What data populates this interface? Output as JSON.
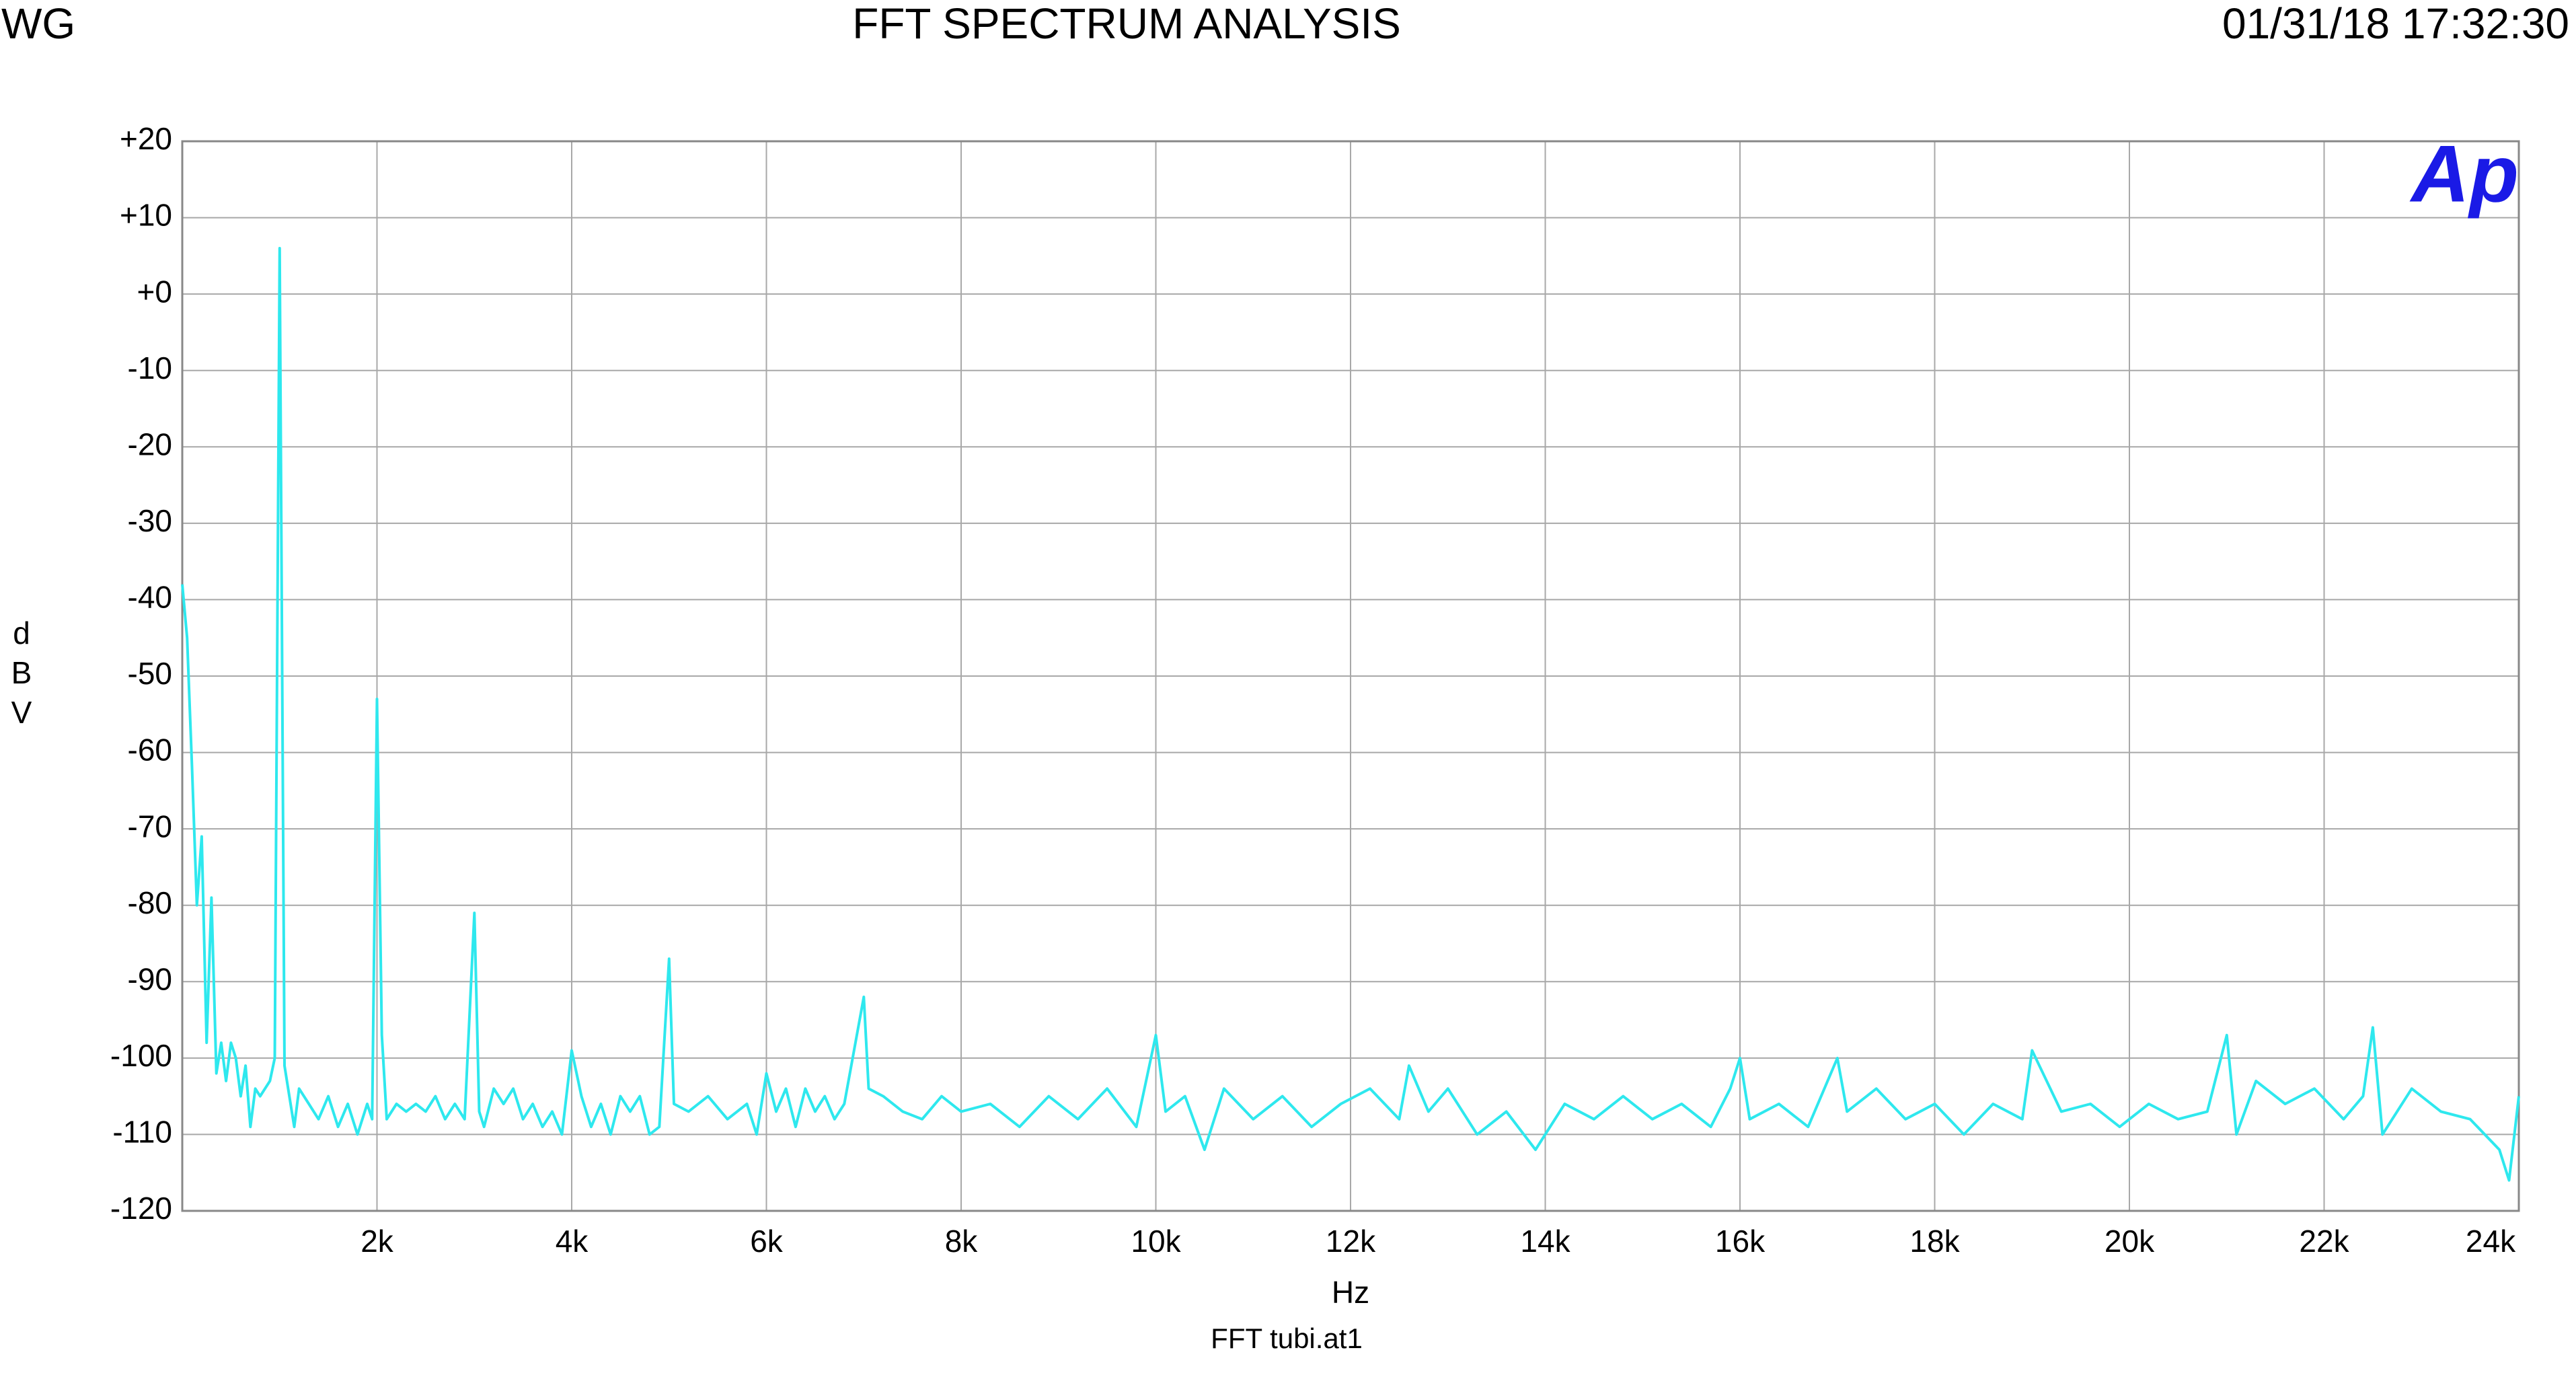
{
  "header": {
    "left": "WG",
    "title": "FFT SPECTRUM ANALYSIS",
    "timestamp": "01/31/18 17:32:30",
    "logo": "Ap"
  },
  "footer": "FFT tubi.at1",
  "chart_data": {
    "type": "line",
    "x_label": "Hz",
    "y_label": "dBV",
    "xlim": [
      0,
      24000
    ],
    "xticks": [
      {
        "value": 2000,
        "label": "2k"
      },
      {
        "value": 4000,
        "label": "4k"
      },
      {
        "value": 6000,
        "label": "6k"
      },
      {
        "value": 8000,
        "label": "8k"
      },
      {
        "value": 10000,
        "label": "10k"
      },
      {
        "value": 12000,
        "label": "12k"
      },
      {
        "value": 14000,
        "label": "14k"
      },
      {
        "value": 16000,
        "label": "16k"
      },
      {
        "value": 18000,
        "label": "18k"
      },
      {
        "value": 20000,
        "label": "20k"
      },
      {
        "value": 22000,
        "label": "22k"
      },
      {
        "value": 24000,
        "label": "24k"
      }
    ],
    "ylim": [
      -120,
      20
    ],
    "yticks": [
      {
        "value": 20,
        "label": "+20"
      },
      {
        "value": 10,
        "label": "+10"
      },
      {
        "value": 0,
        "label": "+0"
      },
      -10,
      -20,
      -30,
      -40,
      -50,
      -60,
      -70,
      -80,
      -90,
      -100,
      -110,
      -120
    ],
    "grid": true,
    "series": [
      {
        "color": "#2ee8ee",
        "x": [
          0,
          50,
          100,
          150,
          200,
          250,
          300,
          350,
          400,
          450,
          500,
          550,
          600,
          650,
          700,
          750,
          800,
          850,
          900,
          950,
          1000,
          1050,
          1100,
          1150,
          1200,
          1300,
          1400,
          1500,
          1600,
          1700,
          1800,
          1900,
          1950,
          2000,
          2050,
          2100,
          2200,
          2300,
          2400,
          2500,
          2600,
          2700,
          2800,
          2900,
          3000,
          3050,
          3100,
          3200,
          3300,
          3400,
          3500,
          3600,
          3700,
          3800,
          3900,
          4000,
          4100,
          4200,
          4300,
          4400,
          4500,
          4600,
          4700,
          4800,
          4900,
          5000,
          5050,
          5200,
          5400,
          5600,
          5800,
          5900,
          6000,
          6100,
          6200,
          6300,
          6400,
          6500,
          6600,
          6700,
          6800,
          7000,
          7050,
          7200,
          7400,
          7600,
          7800,
          8000,
          8300,
          8600,
          8900,
          9200,
          9500,
          9800,
          10000,
          10100,
          10300,
          10500,
          10700,
          11000,
          11300,
          11600,
          11900,
          12200,
          12500,
          12600,
          12800,
          13000,
          13300,
          13600,
          13900,
          14200,
          14500,
          14800,
          15100,
          15400,
          15700,
          15900,
          16000,
          16100,
          16400,
          16700,
          17000,
          17100,
          17400,
          17700,
          18000,
          18300,
          18600,
          18900,
          19000,
          19300,
          19600,
          19900,
          20200,
          20500,
          20800,
          21000,
          21100,
          21300,
          21600,
          21900,
          22200,
          22400,
          22500,
          22600,
          22900,
          23200,
          23500,
          23800,
          23900,
          24000
        ],
        "values": [
          -38,
          -45,
          -62,
          -80,
          -71,
          -98,
          -79,
          -102,
          -98,
          -103,
          -98,
          -100,
          -105,
          -101,
          -109,
          -104,
          -105,
          -104,
          -103,
          -100,
          6,
          -101,
          -105,
          -109,
          -104,
          -106,
          -108,
          -105,
          -109,
          -106,
          -110,
          -106,
          -108,
          -53,
          -97,
          -108,
          -106,
          -107,
          -106,
          -107,
          -105,
          -108,
          -106,
          -108,
          -81,
          -107,
          -109,
          -104,
          -106,
          -104,
          -108,
          -106,
          -109,
          -107,
          -110,
          -99,
          -105,
          -109,
          -106,
          -110,
          -105,
          -107,
          -105,
          -110,
          -109,
          -87,
          -106,
          -107,
          -105,
          -108,
          -106,
          -110,
          -102,
          -107,
          -104,
          -109,
          -104,
          -107,
          -105,
          -108,
          -106,
          -92,
          -104,
          -105,
          -107,
          -108,
          -105,
          -107,
          -106,
          -109,
          -105,
          -108,
          -104,
          -109,
          -97,
          -107,
          -105,
          -112,
          -104,
          -108,
          -105,
          -109,
          -106,
          -104,
          -108,
          -101,
          -107,
          -104,
          -110,
          -107,
          -112,
          -106,
          -108,
          -105,
          -108,
          -106,
          -109,
          -104,
          -100,
          -108,
          -106,
          -109,
          -100,
          -107,
          -104,
          -108,
          -106,
          -110,
          -106,
          -108,
          -99,
          -107,
          -106,
          -109,
          -106,
          -108,
          -107,
          -97,
          -110,
          -103,
          -106,
          -104,
          -108,
          -105,
          -96,
          -110,
          -104,
          -107,
          -108,
          -112,
          -116,
          -105
        ]
      }
    ]
  }
}
